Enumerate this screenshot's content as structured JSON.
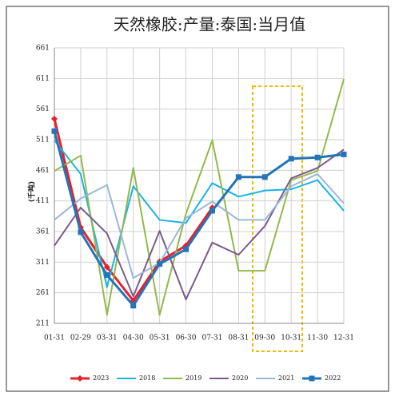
{
  "chart_data": {
    "type": "line",
    "title": "天然橡胶:产量:泰国:当月值",
    "y_label": "(千吨)",
    "categories": [
      "01-31",
      "02-29",
      "03-31",
      "04-30",
      "05-31",
      "06-30",
      "07-31",
      "08-31",
      "09-30",
      "10-31",
      "11-30",
      "12-31"
    ],
    "ylim": [
      211,
      661
    ],
    "yticks": [
      211,
      261,
      311,
      361,
      411,
      461,
      511,
      561,
      611,
      661
    ],
    "grid": true,
    "series": [
      {
        "name": "2023",
        "color": "#e8202a",
        "marker": "diamond",
        "values": [
          545,
          368,
          303,
          248,
          312,
          338,
          400,
          null,
          null,
          null,
          null,
          null
        ]
      },
      {
        "name": "2018",
        "color": "#19b4e6",
        "values": [
          510,
          455,
          270,
          435,
          380,
          375,
          440,
          418,
          428,
          430,
          445,
          395
        ]
      },
      {
        "name": "2019",
        "color": "#93b94c",
        "values": [
          460,
          485,
          225,
          465,
          225,
          390,
          510,
          297,
          297,
          445,
          460,
          610
        ]
      },
      {
        "name": "2020",
        "color": "#7a5a8e",
        "values": [
          338,
          400,
          358,
          255,
          362,
          250,
          343,
          323,
          370,
          448,
          465,
          495
        ]
      },
      {
        "name": "2021",
        "color": "#9bb7d9",
        "values": [
          380,
          415,
          437,
          285,
          310,
          383,
          410,
          380,
          380,
          435,
          455,
          407
        ]
      },
      {
        "name": "2022",
        "color": "#2474b8",
        "marker": "square",
        "values": [
          525,
          360,
          290,
          240,
          308,
          332,
          395,
          450,
          450,
          480,
          482,
          487
        ]
      }
    ]
  }
}
